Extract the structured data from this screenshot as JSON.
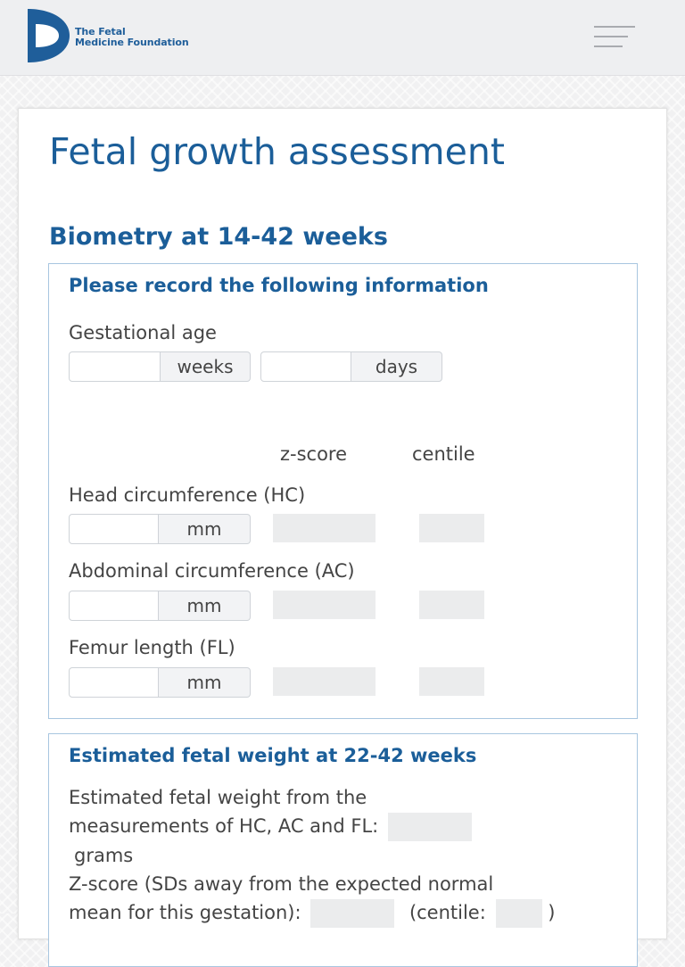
{
  "header": {
    "logo_line1": "The Fetal",
    "logo_line2": "Medicine Foundation",
    "brand_color": "#1f5e9a"
  },
  "page": {
    "title": "Fetal growth assessment",
    "section_title": "Biometry at 14-42 weeks"
  },
  "biometry": {
    "heading": "Please record the following information",
    "gestational_age_label": "Gestational age",
    "weeks_value": "",
    "weeks_unit": "weeks",
    "days_value": "",
    "days_unit": "days",
    "zscore_header": "z-score",
    "centile_header": "centile",
    "measurements": [
      {
        "label": "Head circumference (HC)",
        "value": "",
        "unit": "mm",
        "zscore": "",
        "centile": ""
      },
      {
        "label": "Abdominal circumference (AC)",
        "value": "",
        "unit": "mm",
        "zscore": "",
        "centile": ""
      },
      {
        "label": "Femur length (FL)",
        "value": "",
        "unit": "mm",
        "zscore": "",
        "centile": ""
      }
    ]
  },
  "efw": {
    "heading": "Estimated fetal weight at 22-42 weeks",
    "line1": "Estimated fetal weight from the",
    "line2": "measurements of HC, AC and FL:",
    "weight_value": "",
    "unit": "grams",
    "line4": "Z-score (SDs away from the expected normal",
    "line5": "mean for this gestation):",
    "zscore_value": "",
    "centile_prefix": "(centile:",
    "centile_value": "",
    "centile_suffix": ")"
  }
}
